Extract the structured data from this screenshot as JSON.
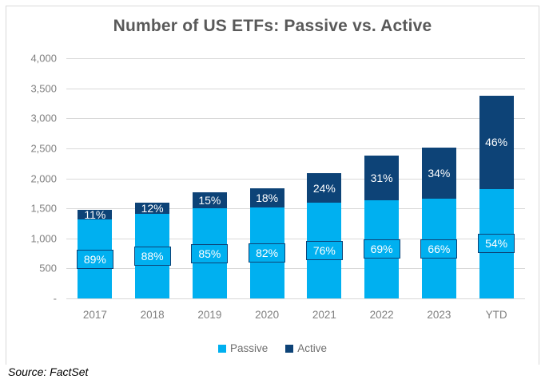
{
  "title": "Number of US ETFs: Passive vs. Active",
  "source_note": "Source: FactSet",
  "colors": {
    "passive": "#00B0F0",
    "active": "#0D4377",
    "gridline": "#d9d9d9",
    "title_text": "#595959",
    "axis_text": "#808080"
  },
  "chart_data": {
    "type": "bar",
    "stacked": true,
    "title": "Number of US ETFs: Passive vs. Active",
    "categories": [
      "2017",
      "2018",
      "2019",
      "2020",
      "2021",
      "2022",
      "2023",
      "YTD"
    ],
    "series": [
      {
        "name": "Passive",
        "color": "#00B0F0",
        "values": [
          1310,
          1410,
          1500,
          1510,
          1590,
          1640,
          1660,
          1825
        ],
        "labels": [
          "89%",
          "88%",
          "85%",
          "82%",
          "76%",
          "69%",
          "66%",
          "54%"
        ]
      },
      {
        "name": "Active",
        "color": "#0D4377",
        "values": [
          160,
          190,
          270,
          330,
          500,
          740,
          850,
          1555
        ],
        "labels": [
          "11%",
          "12%",
          "15%",
          "18%",
          "24%",
          "31%",
          "34%",
          "46%"
        ]
      }
    ],
    "totals": [
      1470,
      1600,
      1770,
      1840,
      2090,
      2380,
      2510,
      3380
    ],
    "xlabel": "",
    "ylabel": "",
    "ylim": [
      0,
      4000
    ],
    "yticks": [
      {
        "value": 4000,
        "label": "4,000"
      },
      {
        "value": 3500,
        "label": "3,500"
      },
      {
        "value": 3000,
        "label": "3,000"
      },
      {
        "value": 2500,
        "label": "2,500"
      },
      {
        "value": 2000,
        "label": "2,000"
      },
      {
        "value": 1500,
        "label": "1,500"
      },
      {
        "value": 1000,
        "label": "1,000"
      },
      {
        "value": 500,
        "label": "500"
      },
      {
        "value": 0,
        "label": "-"
      }
    ],
    "grid": true,
    "legend_position": "bottom"
  }
}
